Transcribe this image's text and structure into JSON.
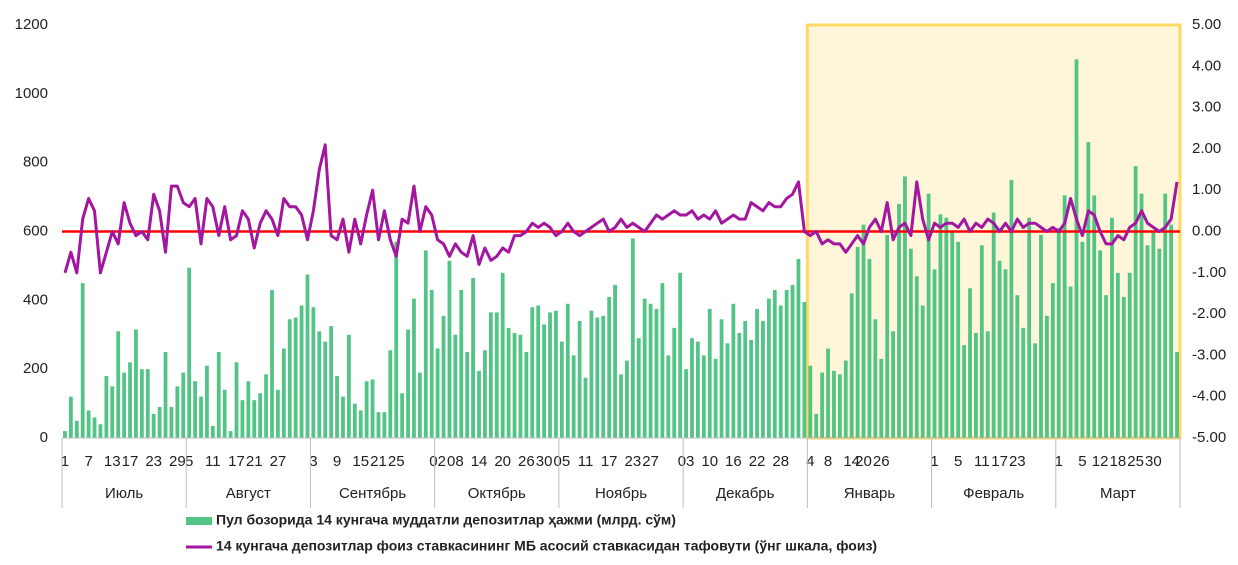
{
  "chart_data": {
    "type": "bar_line",
    "ylim": [
      0,
      1200
    ],
    "yticks": [
      0,
      200,
      400,
      600,
      800,
      1000,
      1200
    ],
    "y2lim": [
      -5,
      5
    ],
    "y2ticks": [
      {
        "value": -5,
        "label": "-5.00"
      },
      {
        "value": -4,
        "label": "-4.00"
      },
      {
        "value": -3,
        "label": "-3.00"
      },
      {
        "value": -2,
        "label": "-2.00"
      },
      {
        "value": -1,
        "label": "-1.00"
      },
      {
        "value": 0,
        "label": "0.00"
      },
      {
        "value": 1,
        "label": "1.00"
      },
      {
        "value": 2,
        "label": "2.00"
      },
      {
        "value": 3,
        "label": "3.00"
      },
      {
        "value": 4,
        "label": "4.00"
      },
      {
        "value": 5,
        "label": "5.00"
      }
    ],
    "reference_line": {
      "axis": "y2",
      "value": 0,
      "color": "#ff0000"
    },
    "groups": [
      {
        "name": "Июль",
        "categories": [
          "1",
          null,
          null,
          null,
          "7",
          null,
          null,
          null,
          "13",
          null,
          null,
          "17",
          null,
          null,
          null,
          "23",
          null,
          null,
          null,
          "29",
          null
        ]
      },
      {
        "name": "Август",
        "categories": [
          "5",
          null,
          null,
          null,
          "11",
          null,
          null,
          null,
          "17",
          null,
          null,
          "21",
          null,
          null,
          null,
          "27",
          null,
          null,
          null,
          null,
          null
        ]
      },
      {
        "name": "Сентябрь",
        "categories": [
          "3",
          null,
          null,
          null,
          "9",
          null,
          null,
          null,
          "15",
          null,
          null,
          "21",
          null,
          null,
          "25",
          null,
          null,
          null,
          null,
          null,
          null
        ]
      },
      {
        "name": "Октябрь",
        "categories": [
          "02",
          null,
          null,
          "08",
          null,
          null,
          null,
          "14",
          null,
          null,
          null,
          "20",
          null,
          null,
          null,
          "26",
          null,
          null,
          "30",
          null,
          null
        ]
      },
      {
        "name": "Ноябрь",
        "categories": [
          "05",
          null,
          null,
          null,
          "11",
          null,
          null,
          null,
          "17",
          null,
          null,
          null,
          "23",
          null,
          null,
          "27",
          null,
          null,
          null,
          null,
          null
        ]
      },
      {
        "name": "Декабрь",
        "categories": [
          "03",
          null,
          null,
          null,
          "10",
          null,
          null,
          null,
          "16",
          null,
          null,
          null,
          "22",
          null,
          null,
          null,
          "28",
          null,
          null,
          null,
          null
        ]
      },
      {
        "name": "Январь",
        "highlight": true,
        "categories": [
          "4",
          null,
          null,
          "8",
          null,
          null,
          null,
          "14",
          null,
          "20",
          null,
          null,
          "26",
          null,
          null,
          null,
          null,
          null,
          null,
          null,
          null
        ]
      },
      {
        "name": "Февраль",
        "highlight": true,
        "categories": [
          "1",
          null,
          null,
          null,
          "5",
          null,
          null,
          null,
          "11",
          null,
          null,
          "17",
          null,
          null,
          "23",
          null,
          null,
          null,
          null,
          null,
          null
        ]
      },
      {
        "name": "Март",
        "highlight": true,
        "categories": [
          "1",
          null,
          null,
          null,
          "5",
          null,
          null,
          "12",
          null,
          null,
          "18",
          null,
          null,
          "25",
          null,
          null,
          "30",
          null,
          null,
          null,
          null
        ]
      }
    ],
    "series": [
      {
        "name": "Пул бозорида 14 кунгача муддатли депозитлар ҳажми (млрд. сўм)",
        "type": "bar",
        "color": "#52c486",
        "values": [
          20,
          120,
          50,
          450,
          80,
          60,
          40,
          180,
          150,
          310,
          190,
          220,
          315,
          200,
          200,
          70,
          90,
          250,
          90,
          150,
          190,
          495,
          165,
          120,
          210,
          35,
          250,
          140,
          20,
          220,
          110,
          165,
          110,
          130,
          185,
          430,
          140,
          260,
          345,
          350,
          385,
          475,
          380,
          310,
          280,
          325,
          180,
          120,
          300,
          100,
          80,
          165,
          170,
          75,
          75,
          255,
          570,
          130,
          315,
          405,
          190,
          545,
          430,
          260,
          355,
          515,
          300,
          430,
          250,
          465,
          195,
          255,
          365,
          365,
          480,
          320,
          305,
          300,
          250,
          380,
          385,
          330,
          365,
          370,
          280,
          390,
          240,
          340,
          175,
          370,
          350,
          355,
          410,
          445,
          185,
          225,
          580,
          290,
          405,
          390,
          375,
          450,
          240,
          320,
          480,
          200,
          290,
          280,
          240,
          375,
          230,
          345,
          275,
          390,
          305,
          340,
          285,
          375,
          340,
          405,
          430,
          385,
          430,
          445,
          520,
          395,
          210,
          70,
          190,
          260,
          195,
          185,
          225,
          420,
          555,
          620,
          520,
          345,
          230,
          590,
          310,
          680,
          760,
          550,
          470,
          385,
          710,
          490,
          650,
          640,
          600,
          570,
          270,
          435,
          305,
          560,
          310,
          655,
          515,
          490,
          750,
          415,
          320,
          640,
          275,
          590,
          355,
          450,
          610,
          705,
          440,
          1100,
          570,
          860,
          705,
          545,
          415,
          640,
          480,
          410,
          480,
          790,
          710,
          560,
          600,
          550,
          710,
          620,
          250
        ]
      },
      {
        "name": "14 кунгача депозитлар фоиз ставкасининг МБ асосий ставкасидан тафовути (ўнг шкала, фоиз)",
        "type": "line",
        "axis": "y2",
        "color": "#a3169f",
        "values": [
          -1.0,
          -0.5,
          -1.0,
          0.3,
          0.8,
          0.5,
          -1.0,
          -0.5,
          0.0,
          -0.3,
          0.7,
          0.2,
          -0.1,
          0.0,
          -0.2,
          0.9,
          0.5,
          -0.5,
          1.1,
          1.1,
          0.7,
          0.6,
          0.8,
          -0.3,
          0.8,
          0.6,
          -0.1,
          0.6,
          -0.2,
          -0.1,
          0.5,
          0.3,
          -0.4,
          0.2,
          0.5,
          0.3,
          -0.1,
          0.8,
          0.6,
          0.6,
          0.4,
          -0.2,
          0.5,
          1.5,
          2.1,
          -0.1,
          -0.2,
          0.3,
          -0.5,
          0.3,
          -0.3,
          0.4,
          1.0,
          -0.2,
          0.5,
          -0.2,
          -0.6,
          0.3,
          0.2,
          1.1,
          0.0,
          0.6,
          0.4,
          -0.2,
          -0.3,
          -0.6,
          -0.3,
          -0.5,
          -0.6,
          -0.1,
          -0.8,
          -0.4,
          -0.7,
          -0.6,
          -0.4,
          -0.5,
          -0.1,
          -0.1,
          0.0,
          0.2,
          0.1,
          0.2,
          0.1,
          -0.1,
          0.0,
          0.2,
          0.0,
          -0.1,
          0.0,
          0.1,
          0.2,
          0.3,
          0.0,
          0.1,
          0.3,
          0.1,
          0.2,
          0.1,
          0.0,
          0.2,
          0.4,
          0.3,
          0.4,
          0.5,
          0.4,
          0.4,
          0.5,
          0.3,
          0.4,
          0.3,
          0.5,
          0.2,
          0.3,
          0.4,
          0.3,
          0.3,
          0.7,
          0.6,
          0.5,
          0.7,
          0.6,
          0.6,
          0.8,
          0.9,
          1.2,
          0.0,
          -0.1,
          0.0,
          -0.3,
          -0.2,
          -0.3,
          -0.3,
          -0.5,
          -0.3,
          -0.1,
          -0.3,
          0.1,
          0.3,
          0.0,
          0.7,
          -0.2,
          0.1,
          0.2,
          -0.1,
          1.2,
          0.3,
          -0.2,
          0.2,
          0.1,
          0.2,
          0.2,
          0.1,
          0.3,
          0.0,
          0.2,
          0.1,
          0.3,
          0.2,
          0.0,
          0.2,
          0.0,
          0.3,
          0.1,
          0.2,
          0.2,
          0.1,
          0.0,
          0.1,
          0.0,
          0.2,
          0.8,
          0.3,
          -0.1,
          0.5,
          0.4,
          0.0,
          -0.3,
          -0.3,
          -0.1,
          -0.2,
          0.1,
          0.2,
          0.5,
          0.2,
          0.1,
          0.0,
          0.1,
          0.3,
          1.2
        ]
      }
    ]
  }
}
